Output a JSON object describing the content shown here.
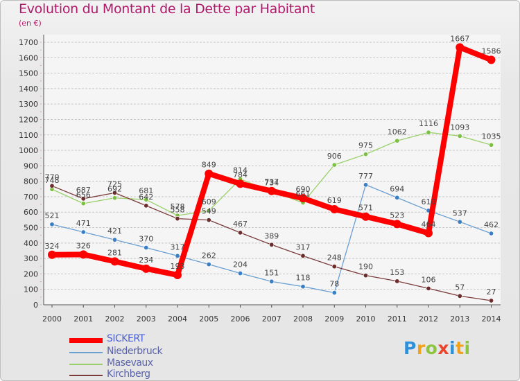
{
  "title": "Evolution du Montant de la Dette par Habitant",
  "subtitle": "(en €)",
  "logo": {
    "letters": [
      {
        "ch": "P",
        "color": "#2f8fd8"
      },
      {
        "ch": "r",
        "color": "#f0a21a"
      },
      {
        "ch": "o",
        "color": "#8cc63f"
      },
      {
        "ch": "x",
        "color": "#e8452c"
      },
      {
        "ch": "i",
        "color": "#2f8fd8"
      },
      {
        "ch": "t",
        "color": "#f0a21a"
      },
      {
        "ch": "i",
        "color": "#8cc63f"
      }
    ]
  },
  "chart_data": {
    "type": "line",
    "title": "Evolution du Montant de la Dette par Habitant",
    "subtitle": "(en €)",
    "x": [
      "2000",
      "2001",
      "2002",
      "2003",
      "2004",
      "2005",
      "2006",
      "2007",
      "2008",
      "2009",
      "2010",
      "2011",
      "2012",
      "2013",
      "2014"
    ],
    "yticks": [
      0,
      100,
      200,
      300,
      400,
      500,
      600,
      700,
      800,
      900,
      1000,
      1100,
      1200,
      1300,
      1400,
      1500,
      1600,
      1700
    ],
    "ylim": [
      0,
      1700
    ],
    "grid": "horizontal",
    "legend_position": "bottom-left",
    "series": [
      {
        "name": "SICKERT",
        "color": "#ff0000",
        "marker": "#ff0000",
        "values": [
          324,
          326,
          281,
          234,
          193,
          849,
          784,
          737,
          690,
          619,
          571,
          523,
          464,
          1667,
          1586
        ],
        "labels": [
          "324",
          "326",
          "281",
          "234",
          "193",
          "849",
          "784",
          "737",
          "690",
          "619",
          "571",
          "523",
          "464",
          "1667",
          "1586"
        ]
      },
      {
        "name": "Niederbruck",
        "color": "#6b9fd2",
        "marker": "#3a7fc4",
        "values": [
          521,
          471,
          421,
          370,
          317,
          262,
          204,
          151,
          118,
          78,
          777,
          694,
          610,
          537,
          462
        ],
        "labels": [
          "521",
          "471",
          "421",
          "370",
          "317",
          "262",
          "204",
          "151",
          "118",
          "78",
          "777",
          "694",
          "610",
          "537",
          "462"
        ]
      },
      {
        "name": "Masevaux",
        "color": "#9ad06b",
        "marker": "#7cc043",
        "values": [
          748,
          656,
          692,
          681,
          578,
          609,
          814,
          734,
          661,
          906,
          975,
          1062,
          1116,
          1093,
          1035
        ],
        "labels": [
          "748",
          "656",
          "692",
          "681",
          "578",
          "609",
          "814",
          "734",
          "661",
          "906",
          "975",
          "1062",
          "1116",
          "1093",
          "1035"
        ]
      },
      {
        "name": "Kirchberg",
        "color": "#7a3b3b",
        "marker": "#6b2c2c",
        "values": [
          770,
          687,
          725,
          642,
          558,
          549,
          467,
          389,
          317,
          248,
          190,
          153,
          106,
          57,
          27
        ],
        "labels": [
          "770",
          "687",
          "725",
          "642",
          "558",
          "549",
          "467",
          "389",
          "317",
          "248",
          "190",
          "153",
          "106",
          "57",
          "27"
        ]
      }
    ]
  }
}
